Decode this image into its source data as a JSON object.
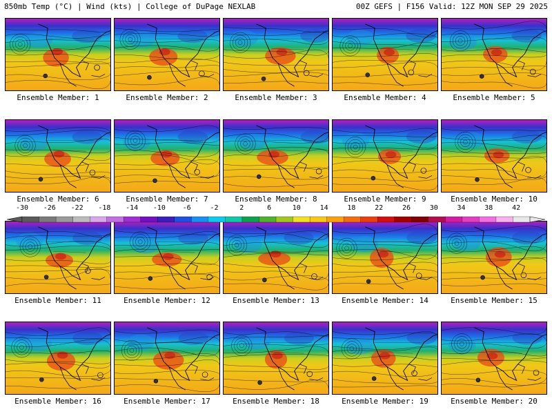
{
  "header": {
    "left": "850mb Temp (°C) | Wind (kts) | College of DuPage NEXLAB",
    "right": "00Z GEFS | F156 Valid: 12Z MON SEP 29 2025"
  },
  "member_prefix": "Ensemble Member: ",
  "members": [
    "1",
    "2",
    "3",
    "4",
    "5",
    "6",
    "7",
    "8",
    "9",
    "10",
    "11",
    "12",
    "13",
    "14",
    "15",
    "16",
    "17",
    "18",
    "19",
    "20"
  ],
  "colorbar": {
    "labels": [
      "-30",
      "-26",
      "-22",
      "-18",
      "-14",
      "-10",
      "-6",
      "-2",
      "2",
      "6",
      "10",
      "14",
      "18",
      "22",
      "26",
      "30",
      "34",
      "38",
      "42"
    ],
    "colors": [
      "#5a5a5a",
      "#7a7a7a",
      "#9a9a9a",
      "#bcbcbc",
      "#d8a8e8",
      "#c070e0",
      "#a030d0",
      "#7010c0",
      "#3a20b8",
      "#2050e0",
      "#1890f0",
      "#10c8e8",
      "#10c8a8",
      "#10a050",
      "#50b030",
      "#a0c820",
      "#f0e020",
      "#f8c818",
      "#f8a010",
      "#f07010",
      "#e84010",
      "#d01010",
      "#a00000",
      "#800000",
      "#b01050",
      "#d020a0",
      "#e040c0",
      "#f070e0",
      "#f8b0f0",
      "#e8e8e8"
    ],
    "min": -30,
    "max": 44,
    "step": 2
  }
}
